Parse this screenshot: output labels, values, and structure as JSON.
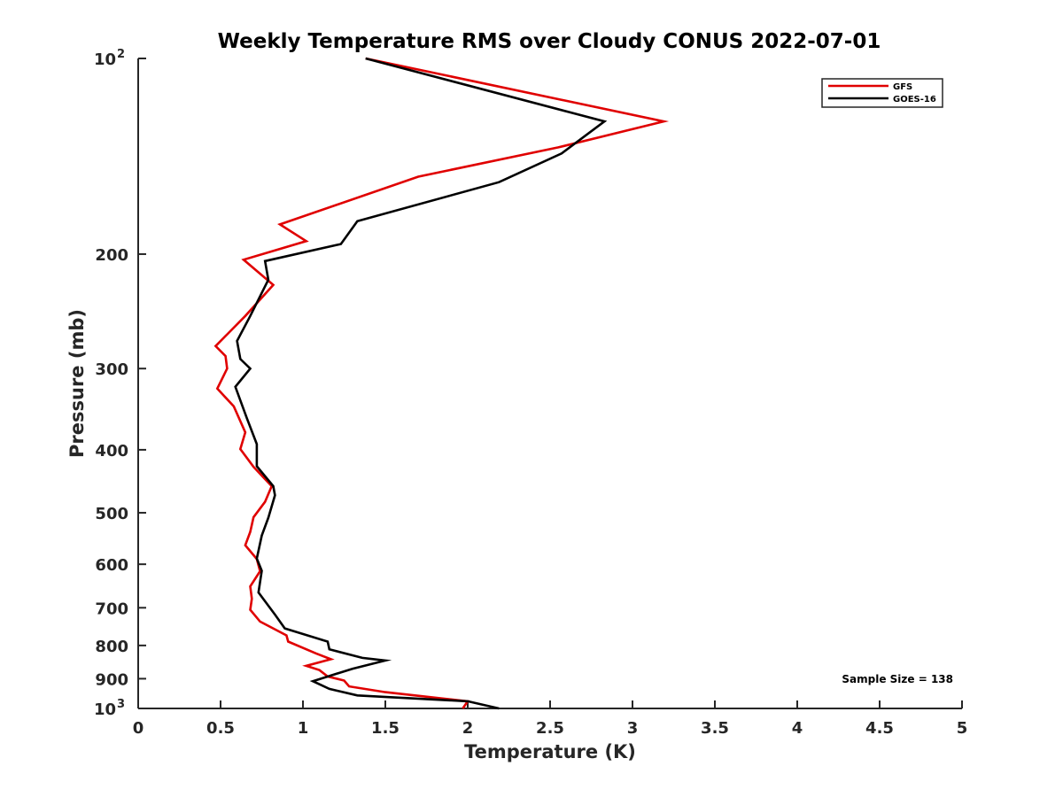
{
  "chart_data": {
    "type": "line",
    "title": "Weekly Temperature RMS over Cloudy CONUS 2022-07-01",
    "xlabel": "Temperature (K)",
    "ylabel": "Pressure (mb)",
    "xlim": [
      0,
      5
    ],
    "ylim": [
      100,
      1000
    ],
    "y_scale": "log",
    "y_reversed": true,
    "grid": false,
    "legend_position": "top-right",
    "x_ticks": [
      0,
      0.5,
      1,
      1.5,
      2,
      2.5,
      3,
      3.5,
      4,
      4.5,
      5
    ],
    "x_tick_labels": [
      "0",
      "0.5",
      "1",
      "1.5",
      "2",
      "2.5",
      "3",
      "3.5",
      "4",
      "4.5",
      "5"
    ],
    "y_ticks": [
      100,
      200,
      300,
      400,
      500,
      600,
      700,
      800,
      900,
      1000
    ],
    "y_tick_labels": [
      "10^2",
      "200",
      "300",
      "400",
      "500",
      "600",
      "700",
      "800",
      "900",
      "10^3"
    ],
    "series": [
      {
        "name": "GFS",
        "color": "#e00000",
        "points": [
          [
            1.38,
            100
          ],
          [
            3.19,
            125
          ],
          [
            2.55,
            137
          ],
          [
            1.7,
            152
          ],
          [
            0.86,
            180
          ],
          [
            1.02,
            191
          ],
          [
            0.64,
            204
          ],
          [
            0.82,
            223
          ],
          [
            0.65,
            249
          ],
          [
            0.47,
            277
          ],
          [
            0.53,
            287
          ],
          [
            0.54,
            300
          ],
          [
            0.48,
            322
          ],
          [
            0.58,
            343
          ],
          [
            0.65,
            376
          ],
          [
            0.62,
            399
          ],
          [
            0.7,
            425
          ],
          [
            0.81,
            455
          ],
          [
            0.77,
            481
          ],
          [
            0.7,
            508
          ],
          [
            0.68,
            535
          ],
          [
            0.65,
            561
          ],
          [
            0.72,
            589
          ],
          [
            0.74,
            615
          ],
          [
            0.68,
            649
          ],
          [
            0.69,
            678
          ],
          [
            0.68,
            705
          ],
          [
            0.74,
            735
          ],
          [
            0.9,
            772
          ],
          [
            0.91,
            789
          ],
          [
            1.08,
            823
          ],
          [
            1.17,
            840
          ],
          [
            1.02,
            860
          ],
          [
            1.1,
            873
          ],
          [
            1.15,
            893
          ],
          [
            1.25,
            906
          ],
          [
            1.28,
            925
          ],
          [
            1.5,
            944
          ],
          [
            2.0,
            975
          ],
          [
            1.97,
            1000
          ]
        ]
      },
      {
        "name": "GOES-16",
        "color": "#000000",
        "points": [
          [
            1.38,
            100
          ],
          [
            2.83,
            125
          ],
          [
            2.57,
            140
          ],
          [
            2.19,
            155
          ],
          [
            1.33,
            178
          ],
          [
            1.23,
            193
          ],
          [
            0.77,
            205
          ],
          [
            0.79,
            219
          ],
          [
            0.68,
            249
          ],
          [
            0.6,
            272
          ],
          [
            0.62,
            290
          ],
          [
            0.68,
            300
          ],
          [
            0.59,
            320
          ],
          [
            0.66,
            358
          ],
          [
            0.72,
            392
          ],
          [
            0.72,
            424
          ],
          [
            0.82,
            455
          ],
          [
            0.83,
            470
          ],
          [
            0.79,
            509
          ],
          [
            0.75,
            542
          ],
          [
            0.72,
            588
          ],
          [
            0.75,
            614
          ],
          [
            0.73,
            663
          ],
          [
            0.83,
            717
          ],
          [
            0.89,
            753
          ],
          [
            1.15,
            789
          ],
          [
            1.16,
            811
          ],
          [
            1.36,
            836
          ],
          [
            1.5,
            844
          ],
          [
            1.3,
            869
          ],
          [
            1.06,
            908
          ],
          [
            1.16,
            933
          ],
          [
            1.33,
            955
          ],
          [
            2.0,
            975
          ],
          [
            2.19,
            1000
          ]
        ]
      }
    ],
    "annotations": [
      "Sample Size = 138"
    ]
  }
}
